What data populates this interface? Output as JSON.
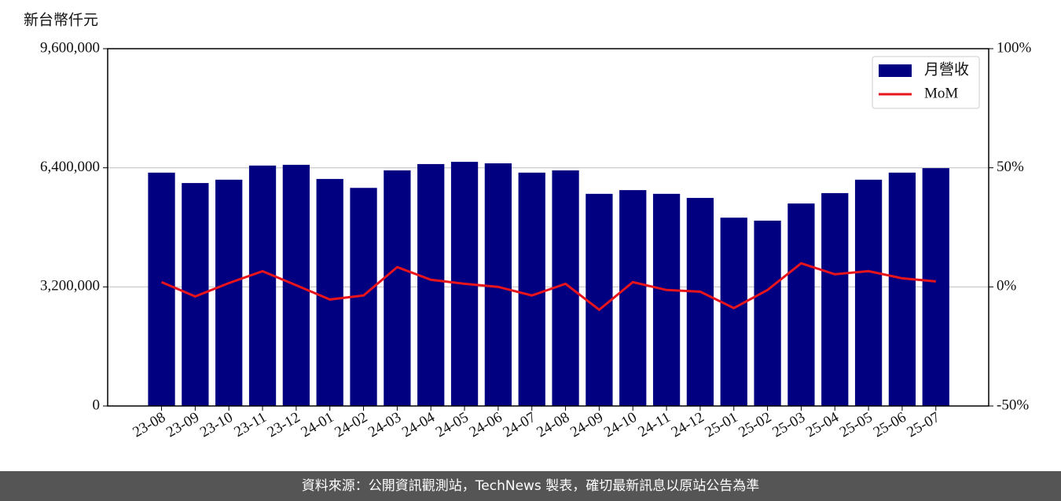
{
  "chart_data": {
    "type": "bar+line",
    "y_label": "新台幣仟元",
    "source": "資料來源：公開資訊觀測站，TechNews 製表，確切最新訊息以原站公告為準",
    "categories": [
      "23-08",
      "23-09",
      "23-10",
      "23-11",
      "23-12",
      "24-01",
      "24-02",
      "24-03",
      "24-04",
      "24-05",
      "24-06",
      "24-07",
      "24-08",
      "24-09",
      "24-10",
      "24-11",
      "24-12",
      "25-01",
      "25-02",
      "25-03",
      "25-04",
      "25-05",
      "25-06",
      "25-07"
    ],
    "series": [
      {
        "name": "月營收",
        "type": "bar",
        "color": "#000080",
        "axis": "y",
        "values": [
          6270000,
          5990000,
          6080000,
          6460000,
          6480000,
          6100000,
          5860000,
          6330000,
          6500000,
          6560000,
          6520000,
          6270000,
          6330000,
          5700000,
          5800000,
          5700000,
          5590000,
          5060000,
          4980000,
          5440000,
          5720000,
          6080000,
          6270000,
          6390000
        ]
      },
      {
        "name": "MoM",
        "type": "line",
        "color": "#e8141c",
        "axis": "y2",
        "values": [
          2.0,
          -4.0,
          1.6,
          6.6,
          0.7,
          -5.3,
          -3.6,
          8.3,
          3.0,
          1.3,
          0.0,
          -3.6,
          1.3,
          -9.6,
          2.0,
          -1.3,
          -2.0,
          -8.9,
          -1.3,
          9.9,
          5.3,
          6.6,
          3.6,
          2.3
        ]
      }
    ],
    "ylim": [
      0,
      9600000
    ],
    "yticks": [
      {
        "value": 0,
        "label": "0"
      },
      {
        "value": 3200000,
        "label": "3,200,000"
      },
      {
        "value": 6400000,
        "label": "6,400,000"
      },
      {
        "value": 9600000,
        "label": "9,600,000"
      }
    ],
    "y2lim": [
      -50,
      100
    ],
    "y2ticks": [
      {
        "value": -50,
        "label": "-50%"
      },
      {
        "value": 0,
        "label": "0%"
      },
      {
        "value": 50,
        "label": "50%"
      },
      {
        "value": 100,
        "label": "100%"
      }
    ],
    "grid": true,
    "legend": "upper right"
  }
}
